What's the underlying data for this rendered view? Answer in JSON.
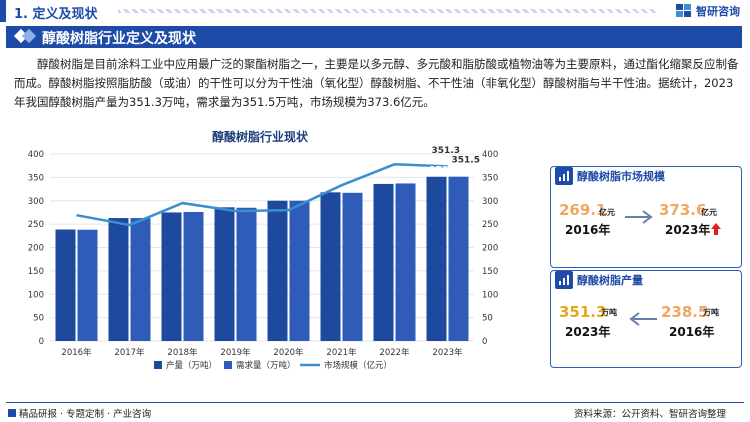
{
  "header": {
    "section_title": "1. 定义及现状",
    "brand_name": "智研咨询"
  },
  "banner": {
    "title": "醇酸树脂行业定义及现状"
  },
  "intro": {
    "paragraph": "醇酸树脂是目前涂料工业中应用最广泛的聚酯树脂之一，主要是以多元醇、多元酸和脂肪酸或植物油等为主要原料，通过酯化缩聚反应制备而成。醇酸树脂按照脂肪酸（或油）的干性可以分为干性油（氧化型）醇酸树脂、不干性油（非氧化型）醇酸树脂与半干性油。据统计，2023年我国醇酸树脂产量为351.3万吨，需求量为351.5万吨，市场规模为373.6亿元。"
  },
  "chart_data": {
    "type": "bar",
    "title": "醇酸树脂行业现状",
    "categories": [
      "2016年",
      "2017年",
      "2018年",
      "2019年",
      "2020年",
      "2021年",
      "2022年",
      "2023年"
    ],
    "series": [
      {
        "name": "产量（万吨）",
        "type": "bar",
        "axis": "left",
        "color": "#1d4a9c",
        "values": [
          238.5,
          263,
          275,
          286,
          300,
          318,
          336,
          351.3
        ]
      },
      {
        "name": "需求量（万吨）",
        "type": "bar",
        "axis": "left",
        "color": "#2e5cb8",
        "values": [
          238,
          263,
          276,
          285,
          300,
          317,
          337,
          351.5
        ]
      },
      {
        "name": "市场规模（亿元）",
        "type": "line",
        "axis": "right",
        "color": "#3a8fd0",
        "values": [
          269.1,
          248,
          295,
          278,
          280,
          333,
          378,
          373.6
        ]
      }
    ],
    "ylim": [
      0,
      400
    ],
    "y2lim": [
      0,
      400
    ],
    "yticks": [
      "0",
      "50",
      "100",
      "150",
      "200",
      "250",
      "300",
      "350",
      "400"
    ],
    "labels": {
      "bar1_last": "351.3",
      "bar2_last": "351.5",
      "line_last": "373.6"
    },
    "grid": true,
    "legend_position": "bottom"
  },
  "card_market": {
    "title": "醇酸树脂市场规模",
    "from_value": "269.1",
    "from_unit": "亿元",
    "from_year": "2016年",
    "to_value": "373.6",
    "to_unit": "亿元",
    "to_year": "2023年",
    "from_color": "#f0a860",
    "to_color": "#f0a860",
    "up_color": "#e02020"
  },
  "card_output": {
    "title": "醇酸树脂产量",
    "left_value": "351.3",
    "left_unit": "万吨",
    "left_year": "2023年",
    "right_value": "238.5",
    "right_unit": "万吨",
    "right_year": "2016年",
    "left_color": "#e6a817",
    "right_color": "#f0a860"
  },
  "footer": {
    "left_text": "精品研报 · 专题定制 · 产业咨询",
    "source": "资料来源：公开资料、智研咨询整理"
  }
}
